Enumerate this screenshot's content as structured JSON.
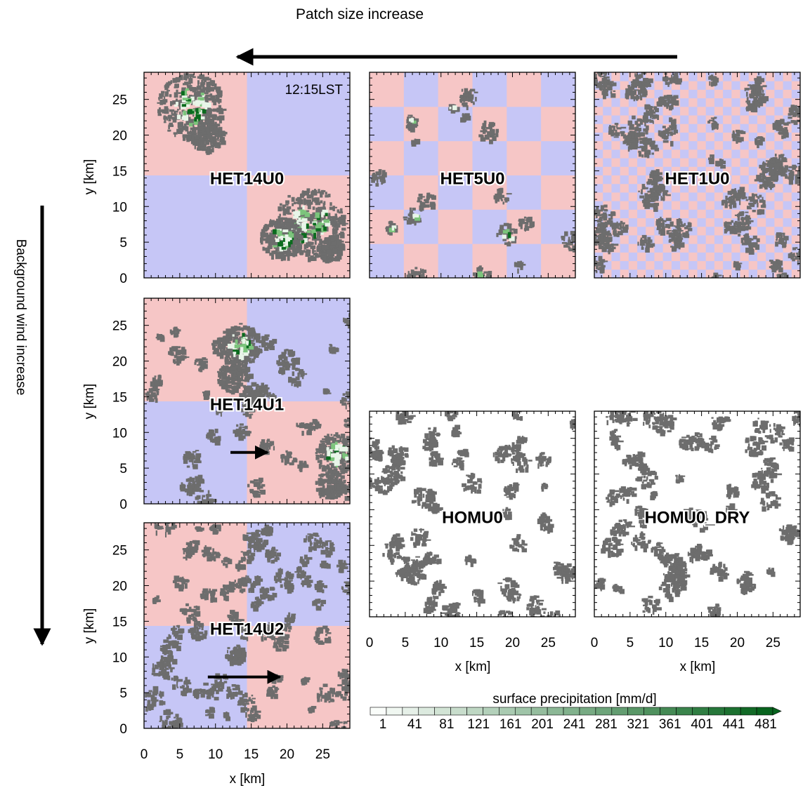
{
  "figure": {
    "top_annotation": "Patch size increase",
    "left_annotation": "Background wind increase",
    "time_label": "12:15LST",
    "x_axis_label": "x [km]",
    "y_axis_label": "y [km]",
    "ticks": [
      "0",
      "5",
      "10",
      "15",
      "20",
      "25"
    ],
    "tick_values": [
      0,
      5,
      10,
      15,
      20,
      25
    ],
    "domain_km": [
      0,
      28.8
    ],
    "colors": {
      "warm_patch": "#f6c6c6",
      "cool_patch": "#c6c6f6",
      "cloud": "#6d6d6d",
      "precip_light": "#e8f5e8",
      "precip_mid": "#7cc47c",
      "precip_dark": "#0b6b1e",
      "homogeneous_bg": "#ffffff"
    }
  },
  "panels": [
    {
      "id": "HET14U0",
      "label": "HET14U0",
      "patch_km": 14.4,
      "surface": "heterogeneous",
      "wind_arrow": "none",
      "show_time": true
    },
    {
      "id": "HET5U0",
      "label": "HET5U0",
      "patch_km": 4.8,
      "surface": "heterogeneous",
      "wind_arrow": "none"
    },
    {
      "id": "HET1U0",
      "label": "HET1U0",
      "patch_km": 1.2,
      "surface": "heterogeneous",
      "wind_arrow": "none"
    },
    {
      "id": "HET14U1",
      "label": "HET14U1",
      "patch_km": 14.4,
      "surface": "heterogeneous",
      "wind_arrow": "short"
    },
    {
      "id": "HET14U2",
      "label": "HET14U2",
      "patch_km": 14.4,
      "surface": "heterogeneous",
      "wind_arrow": "long"
    },
    {
      "id": "HOMU0",
      "label": "HOMU0",
      "surface": "homogeneous",
      "wind_arrow": "none"
    },
    {
      "id": "HOMU0_DRY",
      "label": "HOMU0_DRY",
      "surface": "homogeneous",
      "wind_arrow": "none"
    }
  ],
  "colorbar": {
    "title": "surface precipitation [mm/d]",
    "tick_labels": [
      "1",
      "41",
      "81",
      "121",
      "161",
      "201",
      "241",
      "281",
      "321",
      "361",
      "401",
      "441",
      "481"
    ],
    "tick_values": [
      1,
      41,
      81,
      121,
      161,
      201,
      241,
      281,
      321,
      361,
      401,
      441,
      481
    ],
    "boxes": 25
  }
}
